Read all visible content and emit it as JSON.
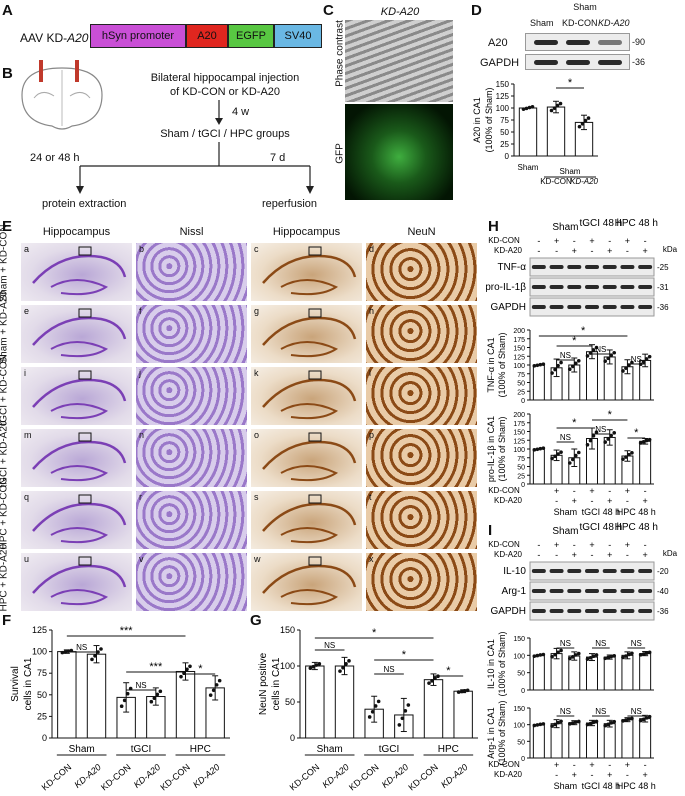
{
  "panelA": {
    "label": "A",
    "construct_prefix": "AAV KD-",
    "construct_gene": "A20",
    "segments": [
      {
        "text": "hSyn promoter",
        "color": "#c94fd6"
      },
      {
        "text": "A20",
        "color": "#e0261f"
      },
      {
        "text": "EGFP",
        "color": "#58c742"
      },
      {
        "text": "SV40",
        "color": "#6ab8e4"
      }
    ]
  },
  "panelB": {
    "label": "B",
    "step1_line1": "Bilateral hippocampal injection",
    "step1_line2": "of KD-CON or KD-A20",
    "interval1": "4 w",
    "step2": "Sham / tGCI / HPC groups",
    "left_time": "24 or 48 h",
    "right_time": "7 d",
    "left_outcome": "protein extraction",
    "right_outcome": "reperfusion"
  },
  "panelC": {
    "label": "C",
    "title": "KD-A20",
    "row1_label": "Phase contrast",
    "row2_label": "GFP"
  },
  "panelD": {
    "label": "D",
    "lanes": [
      "Sham",
      "KD-CON",
      "KD-A20"
    ],
    "sham_header": "Sham",
    "band_labels": [
      "A20",
      "GAPDH"
    ],
    "kda": [
      "-90",
      "-36"
    ],
    "ylabel_line1": "A20 in CA1",
    "ylabel_line2": "(100% of Sham)",
    "sig": "*",
    "x_labels": [
      "Sham",
      "KD-CON",
      "KD-A20"
    ],
    "x_group": "Sham",
    "chart_data": {
      "type": "bar",
      "categories": [
        "Sham",
        "KD-CON",
        "KD-A20"
      ],
      "values": [
        100,
        102,
        70
      ],
      "errors": [
        0,
        12,
        15
      ],
      "ylim": [
        0,
        150
      ],
      "yticks": [
        0,
        25,
        50,
        75,
        100,
        125,
        150
      ]
    }
  },
  "panelE": {
    "label": "E",
    "columns": [
      "Hippocampus",
      "Nissl",
      "Hippocampus",
      "NeuN"
    ],
    "rows": [
      "Sham + KD-CON",
      "Sham + KD-A20",
      "tGCI + KD-CON",
      "tGCI + KD-A20",
      "HPC + KD-CON",
      "HPC + KD-A20"
    ],
    "tile_letters": [
      "a",
      "b",
      "c",
      "d",
      "e",
      "f",
      "g",
      "h",
      "i",
      "j",
      "k",
      "l",
      "m",
      "n",
      "o",
      "p",
      "q",
      "r",
      "s",
      "t",
      "u",
      "v",
      "w",
      "x"
    ]
  },
  "panelF": {
    "label": "F",
    "ylabel_line1": "Survival",
    "ylabel_line2": "cells in CA1",
    "groups": [
      "Sham",
      "tGCI",
      "HPC"
    ],
    "x_labels": [
      "KD-CON",
      "KD-A20",
      "KD-CON",
      "KD-A20",
      "KD-CON",
      "KD-A20"
    ],
    "sig": [
      "***",
      "NS",
      "***",
      "NS",
      "*"
    ],
    "chart_data": {
      "type": "bar",
      "categories": [
        "Sham KD-CON",
        "Sham KD-A20",
        "tGCI KD-CON",
        "tGCI KD-A20",
        "HPC KD-CON",
        "HPC KD-A20"
      ],
      "values": [
        100,
        97,
        47,
        48,
        77,
        58
      ],
      "errors": [
        2,
        10,
        17,
        10,
        10,
        14
      ],
      "ylim": [
        0,
        125
      ],
      "yticks": [
        0,
        25,
        50,
        75,
        100,
        125
      ]
    }
  },
  "panelG": {
    "label": "G",
    "ylabel_line1": "NeuN positive",
    "ylabel_line2": "cells in CA1",
    "groups": [
      "Sham",
      "tGCI",
      "HPC"
    ],
    "x_labels": [
      "KD-CON",
      "KD-A20",
      "KD-CON",
      "KD-A20",
      "KD-CON",
      "KD-A20"
    ],
    "sig": [
      "*",
      "NS",
      "NS",
      "*",
      "*"
    ],
    "chart_data": {
      "type": "bar",
      "categories": [
        "Sham KD-CON",
        "Sham KD-A20",
        "tGCI KD-CON",
        "tGCI KD-A20",
        "HPC KD-CON",
        "HPC KD-A20"
      ],
      "values": [
        100,
        100,
        40,
        32,
        81,
        65
      ],
      "errors": [
        5,
        12,
        18,
        23,
        8,
        2
      ],
      "ylim": [
        0,
        150
      ],
      "yticks": [
        0,
        50,
        100,
        150
      ]
    }
  },
  "panelH": {
    "label": "H",
    "header_groups": [
      "Sham",
      "tGCI 48 h",
      "HPC 48 h"
    ],
    "row_kdcon": "KD-CON",
    "row_kda20": "KD-A20",
    "kdcon_signs": [
      "-",
      "+",
      "-",
      "+",
      "-",
      "+",
      "-"
    ],
    "kda20_signs": [
      "-",
      "-",
      "+",
      "-",
      "+",
      "-",
      "+"
    ],
    "kda_header": "kDa",
    "band_labels": [
      "TNF-α",
      "pro-IL-1β",
      "GAPDH"
    ],
    "kda": [
      "-25",
      "-31",
      "-36"
    ],
    "tnf_ylabel_line1": "TNF-α in CA1",
    "tnf_ylabel_line2": "(100% of Sham)",
    "il1b_ylabel_line1": "pro-IL-1β in CA1",
    "il1b_ylabel_line2": "(100% of Sham)",
    "tnf_sig": [
      "*",
      "*",
      "NS",
      "NS",
      "NS"
    ],
    "il1b_sig": [
      "*",
      "*",
      "NS",
      "NS",
      "*"
    ],
    "x_groups": [
      "Sham",
      "tGCI 48 h",
      "HPC 48 h"
    ],
    "chart_data": [
      {
        "type": "bar",
        "title": "",
        "categories": [
          "Control",
          "Sham KD-CON",
          "Sham KD-A20",
          "tGCI KD-CON",
          "tGCI KD-A20",
          "HPC KD-CON",
          "HPC KD-A20"
        ],
        "values": [
          100,
          92,
          100,
          138,
          123,
          95,
          113
        ],
        "errors": [
          0,
          25,
          20,
          20,
          20,
          20,
          18
        ],
        "ylim": [
          0,
          200
        ],
        "yticks": [
          0,
          25,
          50,
          75,
          100,
          125,
          150,
          175,
          200
        ]
      },
      {
        "type": "bar",
        "title": "",
        "categories": [
          "Control",
          "Sham KD-CON",
          "Sham KD-A20",
          "tGCI KD-CON",
          "tGCI KD-A20",
          "HPC KD-CON",
          "HPC KD-A20"
        ],
        "values": [
          100,
          82,
          75,
          130,
          133,
          80,
          122
        ],
        "errors": [
          0,
          15,
          25,
          30,
          22,
          15,
          8
        ],
        "ylim": [
          0,
          200
        ],
        "yticks": [
          0,
          25,
          50,
          75,
          100,
          125,
          150,
          175,
          200
        ]
      }
    ]
  },
  "panelI": {
    "label": "I",
    "header_groups": [
      "Sham",
      "tGCI 48 h",
      "HPC 48 h"
    ],
    "row_kdcon": "KD-CON",
    "row_kda20": "KD-A20",
    "kdcon_signs": [
      "-",
      "+",
      "-",
      "+",
      "-",
      "+",
      "-"
    ],
    "kda20_signs": [
      "-",
      "-",
      "+",
      "-",
      "+",
      "-",
      "+"
    ],
    "kda_header": "kDa",
    "band_labels": [
      "IL-10",
      "Arg-1",
      "GAPDH"
    ],
    "kda": [
      "-20",
      "-40",
      "-36"
    ],
    "il10_ylabel_line1": "IL-10 in CA1",
    "il10_ylabel_line2": "(100% of Sham)",
    "arg1_ylabel_line1": "Arg-1 in CA1",
    "arg1_ylabel_line2": "(100% of Sham)",
    "il10_sig": [
      "NS",
      "NS",
      "NS"
    ],
    "arg1_sig": [
      "NS",
      "NS",
      "NS"
    ],
    "x_groups": [
      "Sham",
      "tGCI 48 h",
      "HPC 48 h"
    ],
    "chart_data": [
      {
        "type": "bar",
        "categories": [
          "Control",
          "Sham KD-CON",
          "Sham KD-A20",
          "tGCI KD-CON",
          "tGCI KD-A20",
          "HPC KD-CON",
          "HPC KD-A20"
        ],
        "values": [
          100,
          105,
          98,
          95,
          95,
          100,
          105
        ],
        "errors": [
          0,
          15,
          12,
          10,
          6,
          10,
          6
        ],
        "ylim": [
          0,
          150
        ],
        "yticks": [
          0,
          50,
          100,
          150
        ]
      },
      {
        "type": "bar",
        "categories": [
          "Control",
          "Sham KD-CON",
          "Sham KD-A20",
          "tGCI KD-CON",
          "tGCI KD-A20",
          "HPC KD-CON",
          "HPC KD-A20"
        ],
        "values": [
          100,
          103,
          106,
          105,
          103,
          115,
          118
        ],
        "errors": [
          0,
          12,
          6,
          8,
          10,
          6,
          10
        ],
        "ylim": [
          0,
          150
        ],
        "yticks": [
          0,
          50,
          100,
          150
        ]
      }
    ]
  }
}
